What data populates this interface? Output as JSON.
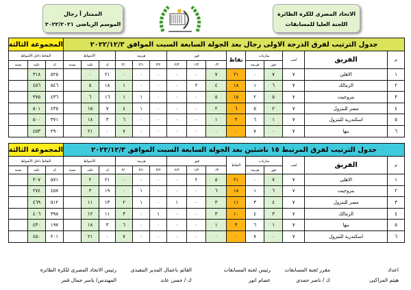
{
  "header": {
    "org_line1": "الاتحاد المصرى للكرة الطائرة",
    "org_line2": "اللجنة العليا للمسابقات",
    "league": "الممتاز أ رجال",
    "season": "الموسم الرياضى ٢٠٢٢/٢٠٢١"
  },
  "columns": {
    "rank": "م",
    "team": "الفريق",
    "played": "لعب",
    "matches": "مباريات",
    "win": "فوز",
    "loss": "هزيمة",
    "points": "نقاط",
    "points2": "النقاط",
    "win_group": "فوز",
    "loss_group": "هزيمة",
    "w30": "٠/٣",
    "w31": "١/٣",
    "w32": "٢/٣",
    "l23": "٣/٢",
    "l13": "٣/١",
    "l03": "٣/٠",
    "sets": "الأشواط",
    "for": "له",
    "against": "عليه",
    "ratio": "نسبة",
    "set_points": "النقاط داخل الأشواط"
  },
  "tables": [
    {
      "title": "جدول الترتيب لفرق الدرجة الاولى رجال بعد الجولة السابعة السبت الموافق ٢٠٢٢/١٢/٣",
      "group": "المجموعة الثالثة",
      "rows": [
        [
          "١",
          "الاهلى",
          "٧",
          "٧",
          "٠",
          "٢١",
          "٧",
          "٠",
          "٠",
          "٠",
          "٠",
          "٠",
          "٢١",
          "٠",
          "",
          "٥٢٥",
          "٣١٨",
          ""
        ],
        [
          "٢",
          "الزمالك",
          "٧",
          "٦",
          "١",
          "١٨",
          "٤",
          "٢",
          "٠",
          "٠",
          "٠",
          "١",
          "١٨",
          "٥",
          "",
          "٥٤٦",
          "٤٥٦",
          ""
        ],
        [
          "٣",
          "بتروجيت",
          "٧",
          "٥",
          "٢",
          "١٥",
          "٥",
          "٠",
          "٠",
          "٠",
          "١",
          "١",
          "١٦",
          "٦",
          "",
          "٤٣٦",
          "٣٧٥",
          ""
        ],
        [
          "٤",
          "مصر للبترول",
          "٧",
          "٢",
          "٥",
          "٦",
          "٢",
          "٠",
          "٠",
          "٠",
          "١",
          "٤",
          "٧",
          "١٥",
          "",
          "٤٣٥",
          "٥٠١",
          ""
        ],
        [
          "٥",
          "اسكندرية للبترول",
          "٧",
          "١",
          "٦",
          "٣",
          "١",
          "٠",
          "٠",
          "٠",
          "٠",
          "٦",
          "٣",
          "١٨",
          "",
          "٣٧١",
          "٥٠٠",
          ""
        ],
        [
          "٦",
          "بنها",
          "٧",
          "٠",
          "٧",
          "٠",
          "٠",
          "٠",
          "٠",
          "٠",
          "٠",
          "٧",
          "٠",
          "٢١",
          "",
          "٢٩٠",
          "٤٥٣",
          ""
        ]
      ]
    },
    {
      "title": "جدول الترتيب لفرق المرتبط ١٥ ناشئين بعد الجولة السابعة السبت الموافق ٢٠٢٢/١٢/٣",
      "group": "المجموعة الثالثة",
      "rows": [
        [
          "١",
          "الاهلى",
          "٧",
          "٧",
          "٠",
          "٢١",
          "٥",
          "٢",
          "٠",
          "٠",
          "٠",
          "٠",
          "٢١",
          "٢",
          "",
          "٥٧١",
          "٣٠٧",
          ""
        ],
        [
          "٢",
          "بتروجيت",
          "٧",
          "٦",
          "١",
          "١٨",
          "٦",
          "٠",
          "٠",
          "٠",
          "١",
          "٠",
          "١٩",
          "٣",
          "",
          "٤٥٧",
          "٢٧٤",
          ""
        ],
        [
          "٣",
          "مصر للبترول",
          "٧",
          "٤",
          "٣",
          "١١",
          "٣",
          "٠",
          "١",
          "٠",
          "١",
          "٢",
          "١٣",
          "١١",
          "",
          "٥١٢",
          "٤٦٩",
          ""
        ],
        [
          "٤",
          "الزمالك",
          "٧",
          "٣",
          "٤",
          "١٠",
          "٣",
          "٠",
          "٠",
          "١",
          "٠",
          "٣",
          "١١",
          "١٢",
          "",
          "٣٩٨",
          "٤٠٦",
          ""
        ],
        [
          "٥",
          "بنها",
          "٧",
          "١",
          "٦",
          "٣",
          "١",
          "٠",
          "٠",
          "٠",
          "٠",
          "٦",
          "٣",
          "١٨",
          "",
          "١٩٧",
          "٤٣٠",
          ""
        ],
        [
          "٦",
          "اسكندرية للبترول",
          "٧",
          "٠",
          "٧",
          "٠",
          "٠",
          "٠",
          "٠",
          "٠",
          "٠",
          "٧",
          "٠",
          "٢١",
          "",
          "٢٠١",
          "٤٥٠",
          ""
        ]
      ]
    }
  ],
  "signatures": [
    {
      "role": "اعداد",
      "name": "هيثم المراكبى"
    },
    {
      "role": "مقرر لجنة المسابقات",
      "name": "ك / ناصر حمدى"
    },
    {
      "role": "رئيس لجنة المسابقات",
      "name": "عصام انور"
    },
    {
      "role": "القائم باعمال المدير التنفيذى",
      "name": "ك / حسن عابد"
    },
    {
      "role": "رئيس الاتحاد المصرى للكرة الطائرة",
      "name": "المهندس/ ياسر جمال قمر"
    }
  ],
  "colors": {
    "title1": "#dbe35a",
    "title2": "#3ec9dc",
    "group": "#ffec1c",
    "points": "#fdb515",
    "cell_green": "#dcf1d2"
  }
}
